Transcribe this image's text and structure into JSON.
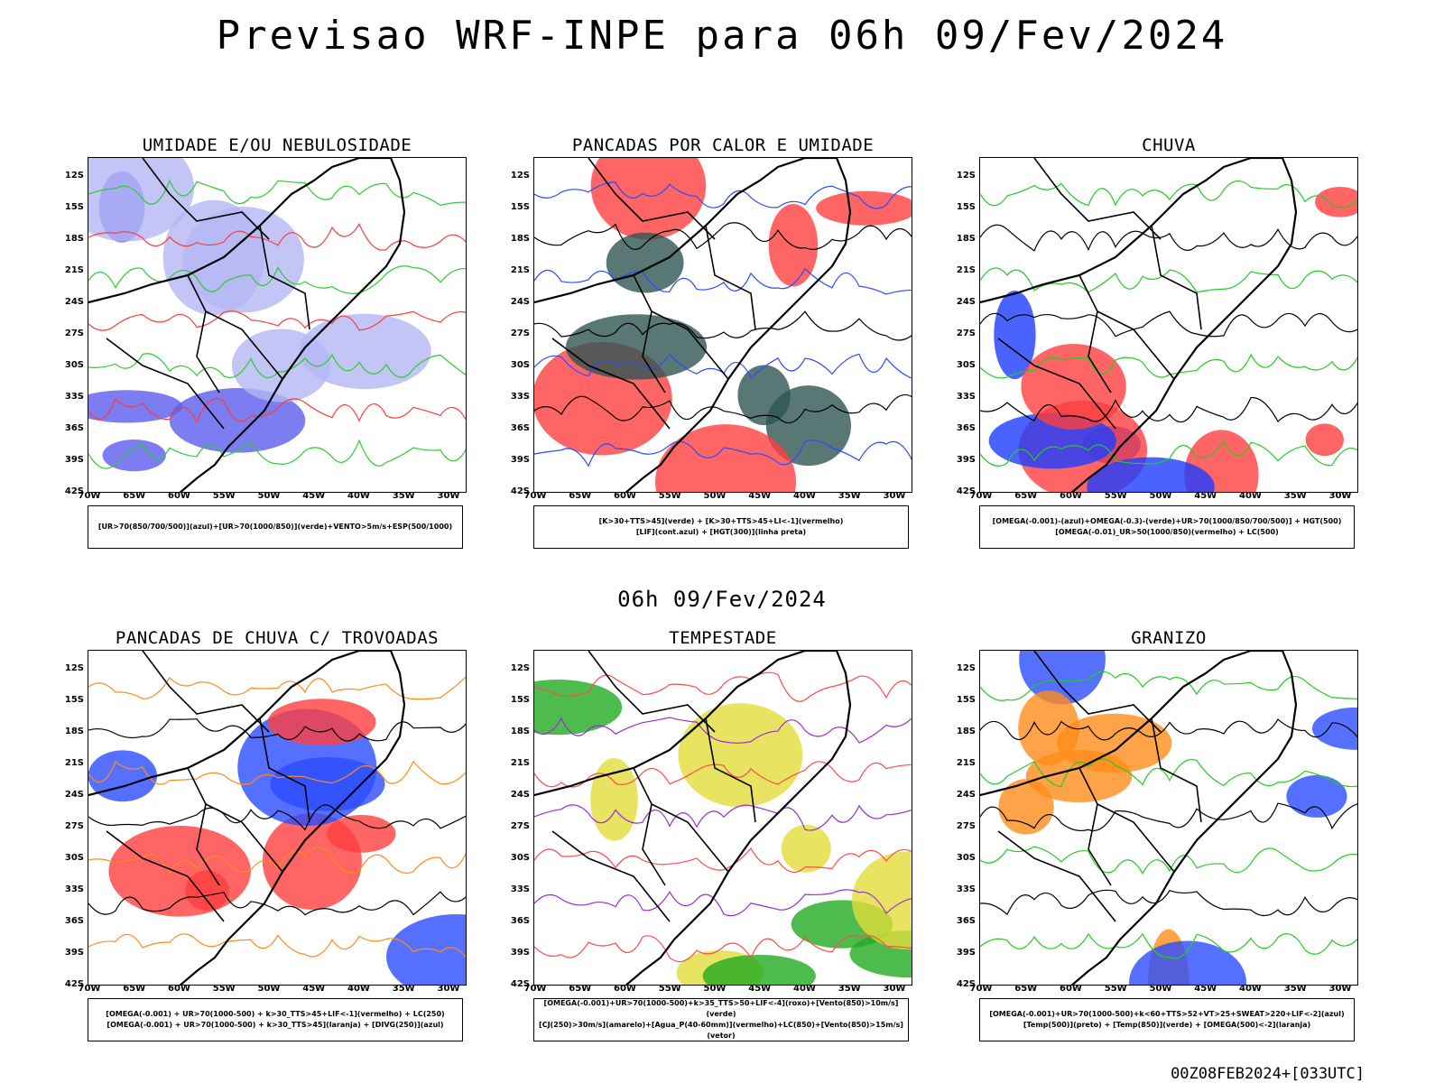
{
  "title": "Previsao WRF-INPE  para 06h 09/Fev/2024",
  "subtitle": "06h 09/Fev/2024",
  "footer": "00Z08FEB2024+[033UTC]",
  "axes": {
    "lat_labels": [
      "12S",
      "15S",
      "18S",
      "21S",
      "24S",
      "27S",
      "30S",
      "33S",
      "36S",
      "39S",
      "42S"
    ],
    "lon_labels": [
      "70W",
      "65W",
      "60W",
      "55W",
      "50W",
      "45W",
      "40W",
      "35W",
      "30W"
    ]
  },
  "panels": [
    {
      "title": "UMIDADE E/OU NEBULOSIDADE",
      "legend": [
        "[UR>70(850/700/500)](azul)+[UR>70(1000/850)](verde)+VENTO>5m/s+ESP(500/1000)"
      ],
      "colors": {
        "fill1": "#b4b6f4",
        "fill2": "#5a5cee",
        "contour1": "#2ecc2e",
        "contour2": "#ff3a3a"
      }
    },
    {
      "title": "PANCADAS POR CALOR E UMIDADE",
      "legend": [
        "[K>30+TTS>45](verde) + [K>30+TTS>45+LI<-1](vermelho)",
        "[LIF](cont.azul) + [HGT(300)](linha preta)"
      ],
      "colors": {
        "fill1": "#ff3f3f",
        "fill2": "#2e5552",
        "contour1": "#2a4cff",
        "contour2": "#000000"
      }
    },
    {
      "title": "CHUVA",
      "legend": [
        "[OMEGA(-0.001)-(azul)+OMEGA(-0.3)-(verde)+UR>70(1000/850/700/500)] + HGT(500)",
        "[OMEGA(-0.01)_UR>50(1000/850)(vermelho) + LC(500)"
      ],
      "colors": {
        "fill1": "#ff3f3f",
        "fill2": "#1d3cff",
        "contour1": "#22cc22",
        "contour2": "#000000"
      }
    },
    {
      "title": "PANCADAS DE CHUVA C/ TROVOADAS",
      "legend": [
        "[OMEGA(-0.001) + UR>70(1000-500) + k>30_TTS>45+LIF<-1](vermelho) + LC(250)",
        "[OMEGA(-0.001) + UR>70(1000-500) + k>30_TTS>45](laranja) + [DIVG(250)](azul)"
      ],
      "colors": {
        "fill1": "#ff3f3f",
        "fill2": "#2a4cff",
        "contour1": "#ff8c1a",
        "contour2": "#000000"
      }
    },
    {
      "title": "TEMPESTADE",
      "legend": [
        "[OMEGA(-0.001)+UR>70(1000-500)+k>35_TTS>50+LIF<-4](roxo)+[Vento(850)>10m/s](verde)",
        "[CJ(250)>30m/s](amarelo)+[Agua_P(40-60mm)](vermelho)+LC(850)+[Vento(850)>15m/s](vetor)"
      ],
      "colors": {
        "fill1": "#e2dd3a",
        "fill2": "#22aa22",
        "contour1": "#ff4a4a",
        "contour2": "#9a2bd8"
      }
    },
    {
      "title": "GRANIZO",
      "legend": [
        "[OMEGA(-0.001)+UR>70(1000-500)+k<60+TTS>52+VT>25+SWEAT>220+LIF<-2](azul)",
        "[Temp(500)](preto) + [Temp(850)](verde) + [OMEGA(500)<-2](laranja)"
      ],
      "colors": {
        "fill1": "#ff8c1a",
        "fill2": "#2a4cff",
        "contour1": "#22cc22",
        "contour2": "#000000"
      }
    }
  ]
}
